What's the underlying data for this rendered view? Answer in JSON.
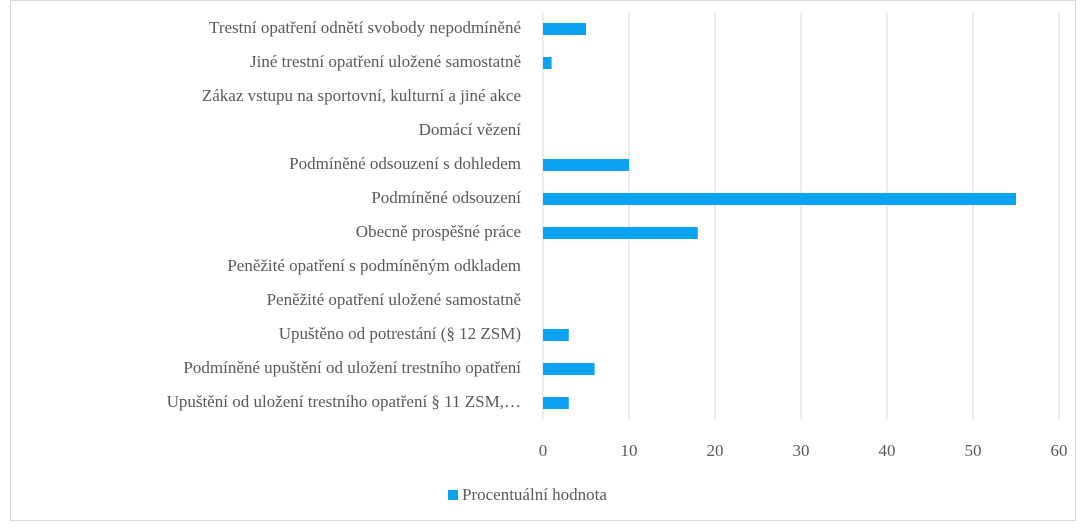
{
  "chart_data": {
    "type": "barh",
    "categories": [
      "Trestní opatření odnětí svobody nepodmíněné",
      "Jiné trestní opatření uložené samostatně",
      "Zákaz vstupu na sportovní, kulturní a jiné akce",
      "Domácí vězení",
      "Podmíněné odsouzení s dohledem",
      "Podmíněné odsouzení",
      "Obecně prospěšné práce",
      "Peněžité opatření s podmíněným odkladem",
      "Peněžité opatření uložené samostatně",
      "Upuštěno od potrestání (§ 12 ZSM)",
      "Podmíněné upuštění od uložení trestního opatření",
      "Upuštění od uložení trestního opatření § 11 ZSM,…"
    ],
    "series": [
      {
        "name": "Procentuální hodnota",
        "color": "#0aa2f2",
        "values": [
          5,
          1,
          0,
          0,
          10,
          55,
          18,
          0,
          0,
          3,
          6,
          3
        ]
      }
    ],
    "xlim": [
      0,
      60
    ],
    "xticks": [
      0,
      10,
      20,
      30,
      40,
      50,
      60
    ],
    "grid": true,
    "legend": "bottom"
  }
}
